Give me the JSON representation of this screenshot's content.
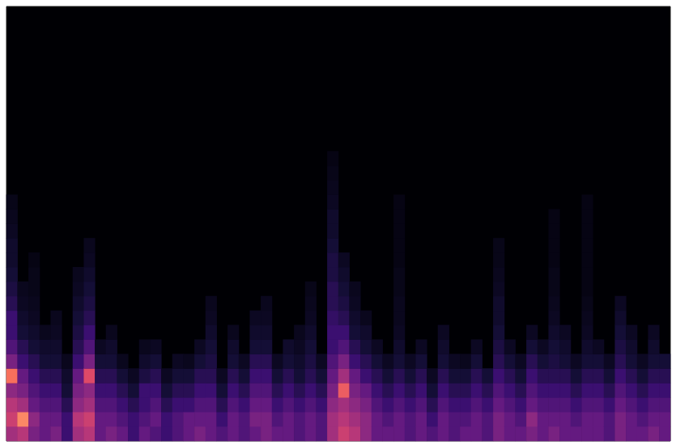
{
  "chart_data": {
    "type": "heatmap",
    "tick_labels": false,
    "xlim": [
      0,
      60
    ],
    "ylim": [
      0,
      30
    ],
    "zlim": [
      0,
      1
    ],
    "values": [
      [
        0.45,
        0.55,
        0.5,
        0.4,
        0.7,
        0.35,
        0.25,
        0.2,
        0.2,
        0.15,
        0.12,
        0.1,
        0.08,
        0.08,
        0.06,
        0.05,
        0.04
      ],
      [
        0.5,
        0.75,
        0.45,
        0.35,
        0.3,
        0.2,
        0.15,
        0.1,
        0.08,
        0.06,
        0.05
      ],
      [
        0.35,
        0.4,
        0.3,
        0.25,
        0.2,
        0.15,
        0.1,
        0.08,
        0.06,
        0.05,
        0.04,
        0.04,
        0.03
      ],
      [
        0.3,
        0.3,
        0.25,
        0.2,
        0.15,
        0.1,
        0.08,
        0.05
      ],
      [
        0.35,
        0.3,
        0.25,
        0.2,
        0.15,
        0.1,
        0.08,
        0.06,
        0.05
      ],
      [
        0.2,
        0.2,
        0.15,
        0.1,
        0.08,
        0.05
      ],
      [
        0.45,
        0.5,
        0.4,
        0.35,
        0.3,
        0.2,
        0.15,
        0.12,
        0.1,
        0.08,
        0.06,
        0.05
      ],
      [
        0.5,
        0.55,
        0.45,
        0.4,
        0.6,
        0.35,
        0.25,
        0.2,
        0.15,
        0.12,
        0.1,
        0.08,
        0.06,
        0.05
      ],
      [
        0.3,
        0.3,
        0.25,
        0.2,
        0.15,
        0.1,
        0.06
      ],
      [
        0.35,
        0.3,
        0.25,
        0.2,
        0.15,
        0.1,
        0.08,
        0.05
      ],
      [
        0.3,
        0.25,
        0.2,
        0.15,
        0.1,
        0.05
      ],
      [
        0.2,
        0.2,
        0.15,
        0.1,
        0.06
      ],
      [
        0.3,
        0.25,
        0.2,
        0.2,
        0.12,
        0.08,
        0.05
      ],
      [
        0.25,
        0.3,
        0.25,
        0.2,
        0.15,
        0.1,
        0.06
      ],
      [
        0.2,
        0.2,
        0.15,
        0.1,
        0.06
      ],
      [
        0.25,
        0.25,
        0.2,
        0.15,
        0.1,
        0.06
      ],
      [
        0.3,
        0.3,
        0.2,
        0.15,
        0.1,
        0.05
      ],
      [
        0.35,
        0.3,
        0.25,
        0.2,
        0.15,
        0.1,
        0.06
      ],
      [
        0.3,
        0.3,
        0.25,
        0.2,
        0.15,
        0.12,
        0.1,
        0.08,
        0.06,
        0.05
      ],
      [
        0.25,
        0.2,
        0.15,
        0.1,
        0.06
      ],
      [
        0.3,
        0.3,
        0.25,
        0.2,
        0.15,
        0.1,
        0.08,
        0.05
      ],
      [
        0.25,
        0.25,
        0.2,
        0.15,
        0.1,
        0.06
      ],
      [
        0.3,
        0.35,
        0.3,
        0.25,
        0.2,
        0.15,
        0.1,
        0.08,
        0.06
      ],
      [
        0.35,
        0.35,
        0.3,
        0.25,
        0.2,
        0.15,
        0.1,
        0.08,
        0.06,
        0.05
      ],
      [
        0.3,
        0.25,
        0.2,
        0.15,
        0.1,
        0.06
      ],
      [
        0.3,
        0.3,
        0.25,
        0.2,
        0.15,
        0.1,
        0.08
      ],
      [
        0.25,
        0.25,
        0.2,
        0.15,
        0.1,
        0.08,
        0.06,
        0.05
      ],
      [
        0.3,
        0.3,
        0.25,
        0.2,
        0.15,
        0.12,
        0.1,
        0.08,
        0.06,
        0.05,
        0.04
      ],
      [
        0.25,
        0.25,
        0.2,
        0.15,
        0.1,
        0.06
      ],
      [
        0.45,
        0.45,
        0.4,
        0.35,
        0.3,
        0.25,
        0.2,
        0.2,
        0.18,
        0.15,
        0.15,
        0.12,
        0.12,
        0.1,
        0.08,
        0.08,
        0.06,
        0.05,
        0.04,
        0.03
      ],
      [
        0.55,
        0.5,
        0.45,
        0.65,
        0.45,
        0.35,
        0.25,
        0.2,
        0.15,
        0.12,
        0.1,
        0.08,
        0.06
      ],
      [
        0.5,
        0.45,
        0.4,
        0.35,
        0.3,
        0.2,
        0.15,
        0.1,
        0.08,
        0.06,
        0.05
      ],
      [
        0.4,
        0.4,
        0.35,
        0.3,
        0.2,
        0.15,
        0.1,
        0.08,
        0.05
      ],
      [
        0.3,
        0.3,
        0.25,
        0.2,
        0.15,
        0.1,
        0.06
      ],
      [
        0.3,
        0.25,
        0.2,
        0.15,
        0.1,
        0.06
      ],
      [
        0.3,
        0.3,
        0.25,
        0.2,
        0.15,
        0.1,
        0.08,
        0.06,
        0.05,
        0.05,
        0.04,
        0.04,
        0.03,
        0.03,
        0.03,
        0.03,
        0.03
      ],
      [
        0.25,
        0.25,
        0.2,
        0.15,
        0.1,
        0.06
      ],
      [
        0.3,
        0.3,
        0.25,
        0.2,
        0.15,
        0.1,
        0.06
      ],
      [
        0.25,
        0.2,
        0.15,
        0.1,
        0.06
      ],
      [
        0.3,
        0.3,
        0.25,
        0.2,
        0.15,
        0.1,
        0.08,
        0.06
      ],
      [
        0.25,
        0.25,
        0.2,
        0.15,
        0.1,
        0.06
      ],
      [
        0.3,
        0.25,
        0.2,
        0.15,
        0.1,
        0.05
      ],
      [
        0.3,
        0.3,
        0.25,
        0.2,
        0.15,
        0.1,
        0.06
      ],
      [
        0.25,
        0.25,
        0.2,
        0.15,
        0.1
      ],
      [
        0.35,
        0.35,
        0.3,
        0.25,
        0.2,
        0.15,
        0.12,
        0.1,
        0.08,
        0.08,
        0.06,
        0.05,
        0.04,
        0.04
      ],
      [
        0.3,
        0.3,
        0.25,
        0.2,
        0.15,
        0.1,
        0.06
      ],
      [
        0.3,
        0.25,
        0.2,
        0.15,
        0.1,
        0.06
      ],
      [
        0.35,
        0.4,
        0.3,
        0.25,
        0.2,
        0.15,
        0.1,
        0.06
      ],
      [
        0.3,
        0.3,
        0.25,
        0.2,
        0.15,
        0.1,
        0.06
      ],
      [
        0.35,
        0.3,
        0.25,
        0.2,
        0.15,
        0.12,
        0.1,
        0.08,
        0.06,
        0.05,
        0.04,
        0.04,
        0.03,
        0.03,
        0.03,
        0.03
      ],
      [
        0.3,
        0.3,
        0.25,
        0.2,
        0.15,
        0.1,
        0.08,
        0.06
      ],
      [
        0.3,
        0.25,
        0.2,
        0.15,
        0.1,
        0.06
      ],
      [
        0.3,
        0.3,
        0.25,
        0.2,
        0.15,
        0.1,
        0.08,
        0.06,
        0.05,
        0.04,
        0.03,
        0.03,
        0.03,
        0.03,
        0.03,
        0.03,
        0.03
      ],
      [
        0.3,
        0.3,
        0.25,
        0.2,
        0.15,
        0.1,
        0.06
      ],
      [
        0.25,
        0.25,
        0.2,
        0.15,
        0.1,
        0.06
      ],
      [
        0.35,
        0.35,
        0.3,
        0.25,
        0.2,
        0.15,
        0.12,
        0.1,
        0.08,
        0.06
      ],
      [
        0.3,
        0.3,
        0.25,
        0.2,
        0.15,
        0.1,
        0.08,
        0.06
      ],
      [
        0.3,
        0.25,
        0.2,
        0.15,
        0.1,
        0.06
      ],
      [
        0.35,
        0.3,
        0.25,
        0.2,
        0.15,
        0.1,
        0.08,
        0.06
      ],
      [
        0.3,
        0.3,
        0.25,
        0.2,
        0.15,
        0.1
      ]
    ]
  }
}
